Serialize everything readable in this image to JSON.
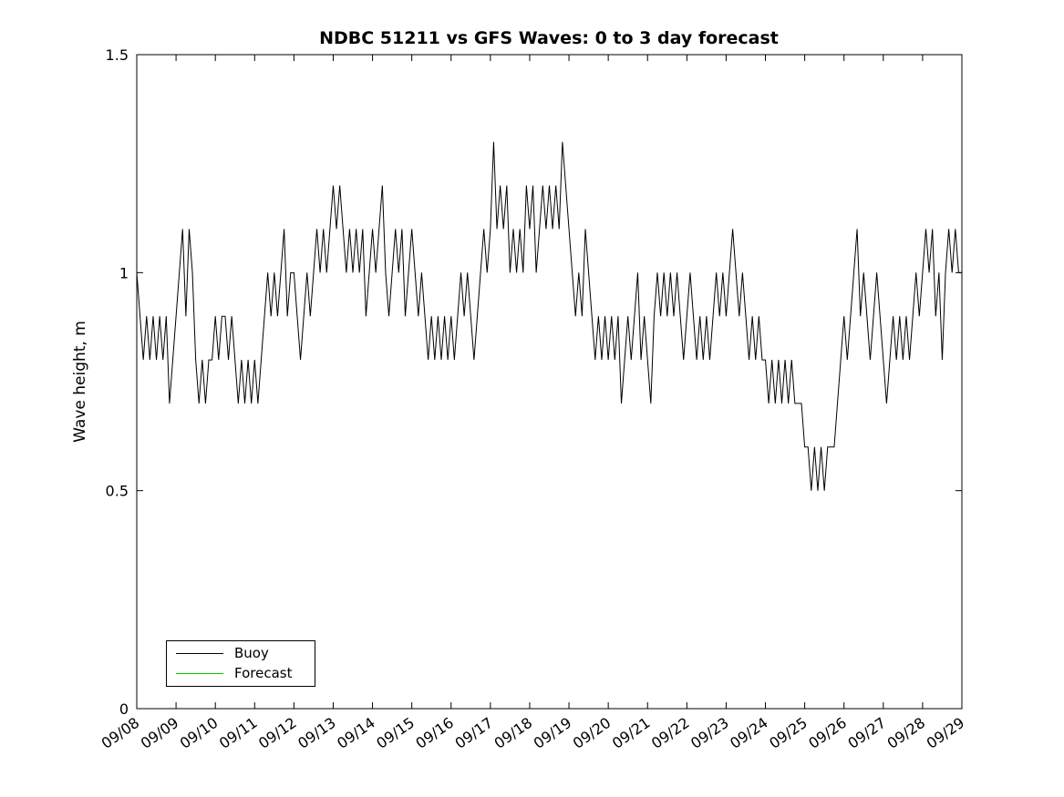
{
  "chart_data": {
    "type": "line",
    "title": "NDBC 51211 vs GFS Waves: 0 to 3 day forecast",
    "xlabel": "",
    "ylabel": "Wave height, m",
    "ylim": [
      0,
      1.5
    ],
    "yticks": [
      0,
      0.5,
      1,
      1.5
    ],
    "ytick_labels": [
      "0",
      "0.5",
      "1",
      "1.5"
    ],
    "xtick_labels": [
      "09/08",
      "09/09",
      "09/10",
      "09/11",
      "09/12",
      "09/13",
      "09/14",
      "09/15",
      "09/16",
      "09/17",
      "09/18",
      "09/19",
      "09/20",
      "09/21",
      "09/22",
      "09/23",
      "09/24",
      "09/25",
      "09/26",
      "09/27",
      "09/28",
      "09/29"
    ],
    "x_axis_note": "dates 09/08 to 09/29, one tick per day, labels rotated",
    "samples_per_day": 12,
    "grid": false,
    "legend_position": "lower-left",
    "series": [
      {
        "name": "Buoy",
        "color": "#000000",
        "values": [
          1.0,
          0.9,
          0.8,
          0.9,
          0.8,
          0.9,
          0.8,
          0.9,
          0.8,
          0.9,
          0.7,
          0.8,
          0.9,
          1.0,
          1.1,
          0.9,
          1.1,
          1.0,
          0.8,
          0.7,
          0.8,
          0.7,
          0.8,
          0.8,
          0.9,
          0.8,
          0.9,
          0.9,
          0.8,
          0.9,
          0.8,
          0.7,
          0.8,
          0.7,
          0.8,
          0.7,
          0.8,
          0.7,
          0.8,
          0.9,
          1.0,
          0.9,
          1.0,
          0.9,
          1.0,
          1.1,
          0.9,
          1.0,
          1.0,
          0.9,
          0.8,
          0.9,
          1.0,
          0.9,
          1.0,
          1.1,
          1.0,
          1.1,
          1.0,
          1.1,
          1.2,
          1.1,
          1.2,
          1.1,
          1.0,
          1.1,
          1.0,
          1.1,
          1.0,
          1.1,
          0.9,
          1.0,
          1.1,
          1.0,
          1.1,
          1.2,
          1.0,
          0.9,
          1.0,
          1.1,
          1.0,
          1.1,
          0.9,
          1.0,
          1.1,
          1.0,
          0.9,
          1.0,
          0.9,
          0.8,
          0.9,
          0.8,
          0.9,
          0.8,
          0.9,
          0.8,
          0.9,
          0.8,
          0.9,
          1.0,
          0.9,
          1.0,
          0.9,
          0.8,
          0.9,
          1.0,
          1.1,
          1.0,
          1.1,
          1.3,
          1.1,
          1.2,
          1.1,
          1.2,
          1.0,
          1.1,
          1.0,
          1.1,
          1.0,
          1.2,
          1.1,
          1.2,
          1.0,
          1.1,
          1.2,
          1.1,
          1.2,
          1.1,
          1.2,
          1.1,
          1.3,
          1.2,
          1.1,
          1.0,
          0.9,
          1.0,
          0.9,
          1.1,
          1.0,
          0.9,
          0.8,
          0.9,
          0.8,
          0.9,
          0.8,
          0.9,
          0.8,
          0.9,
          0.7,
          0.8,
          0.9,
          0.8,
          0.9,
          1.0,
          0.8,
          0.9,
          0.8,
          0.7,
          0.9,
          1.0,
          0.9,
          1.0,
          0.9,
          1.0,
          0.9,
          1.0,
          0.9,
          0.8,
          0.9,
          1.0,
          0.9,
          0.8,
          0.9,
          0.8,
          0.9,
          0.8,
          0.9,
          1.0,
          0.9,
          1.0,
          0.9,
          1.0,
          1.1,
          1.0,
          0.9,
          1.0,
          0.9,
          0.8,
          0.9,
          0.8,
          0.9,
          0.8,
          0.8,
          0.7,
          0.8,
          0.7,
          0.8,
          0.7,
          0.8,
          0.7,
          0.8,
          0.7,
          0.7,
          0.7,
          0.6,
          0.6,
          0.5,
          0.6,
          0.5,
          0.6,
          0.5,
          0.6,
          0.6,
          0.6,
          0.7,
          0.8,
          0.9,
          0.8,
          0.9,
          1.0,
          1.1,
          0.9,
          1.0,
          0.9,
          0.8,
          0.9,
          1.0,
          0.9,
          0.8,
          0.7,
          0.8,
          0.9,
          0.8,
          0.9,
          0.8,
          0.9,
          0.8,
          0.9,
          1.0,
          0.9,
          1.0,
          1.1,
          1.0,
          1.1,
          0.9,
          1.0,
          0.8,
          1.0,
          1.1,
          1.0,
          1.1,
          1.0,
          1.0
        ]
      },
      {
        "name": "Forecast",
        "color": "#00cc00",
        "values": []
      }
    ]
  },
  "legend": {
    "entries": [
      "Buoy",
      "Forecast"
    ]
  }
}
